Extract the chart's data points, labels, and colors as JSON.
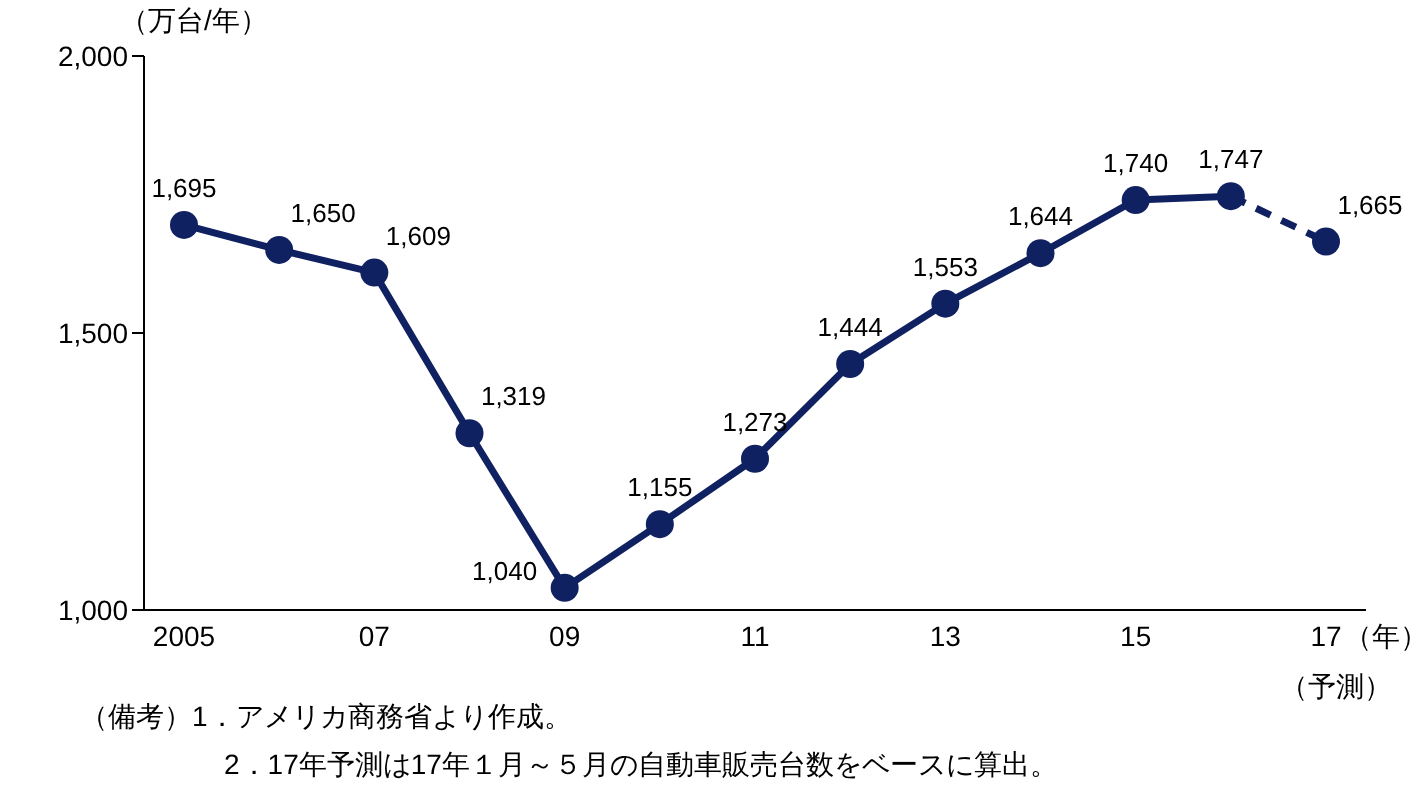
{
  "chart_data": {
    "type": "line",
    "categories": [
      "2005",
      null,
      "07",
      null,
      "09",
      null,
      "11",
      null,
      "13",
      null,
      "15",
      null,
      "17"
    ],
    "series": [
      {
        "color": "#0f2161",
        "values": [
          1695,
          1650,
          1609,
          1319,
          1040,
          1155,
          1273,
          1444,
          1553,
          1644,
          1740,
          1747,
          null
        ],
        "value_labels": [
          "1,695",
          "1,650",
          "1,609",
          "1,319",
          "1,040",
          "1,155",
          "1,273",
          "1,444",
          "1,553",
          "1,644",
          "1,740",
          "1,747",
          null
        ]
      },
      {
        "color": "#0f2161",
        "line_style": "dashed",
        "values": [
          null,
          null,
          null,
          null,
          null,
          null,
          null,
          null,
          null,
          null,
          null,
          1747,
          1665
        ],
        "value_labels": [
          null,
          null,
          null,
          null,
          null,
          null,
          null,
          null,
          null,
          null,
          null,
          null,
          "1,665"
        ]
      }
    ],
    "ylabel": "（万台/年）",
    "xlabel": "（年）",
    "ylim": [
      1000,
      2000
    ],
    "yticks": [
      {
        "value": 1000,
        "label": "1,000"
      },
      {
        "value": 1500,
        "label": "1,500"
      },
      {
        "value": 2000,
        "label": "2,000"
      }
    ],
    "grid": false,
    "legend": false,
    "marker": "circle",
    "line_style": "solid",
    "annotations": [
      "（予測）",
      "（備考）1．アメリカ商務省より作成。",
      "2．17年予測は17年１月～５月の自動車販売台数をベースに算出。"
    ]
  }
}
